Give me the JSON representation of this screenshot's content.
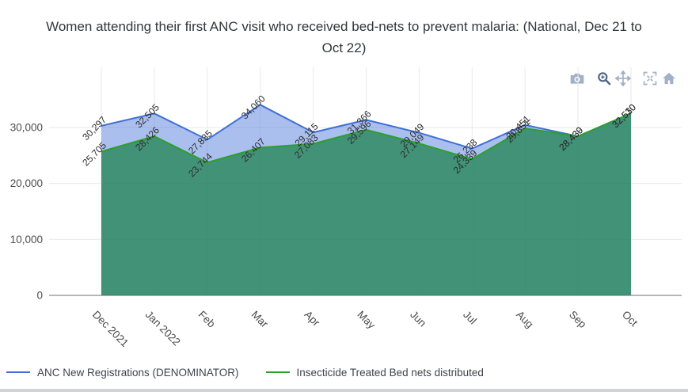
{
  "title": {
    "line1": "Women attending their first ANC visit who received bed-nets to prevent malaria: (National, Dec 21 to",
    "line2": "Oct 22)"
  },
  "modebar": {
    "icons": [
      "download-plot-camera",
      "zoom",
      "pan",
      "autoscale",
      "reset-axes-home"
    ],
    "icon_color": "#a2b1c6",
    "active_icon_color": "#506784"
  },
  "chart_data": {
    "type": "area",
    "title": "Women attending their first ANC visit who received bed-nets to prevent malaria: (National, Dec 21 to Oct 22)",
    "categories": [
      "Dec 2021",
      "Jan 2022",
      "Feb",
      "Mar",
      "Apr",
      "May",
      "Jun",
      "Jul",
      "Aug",
      "Sep",
      "Oct"
    ],
    "series": [
      {
        "name": "ANC New Registrations (DENOMINATOR)",
        "line_color": "#3f6fd7",
        "fill_color": "rgba(67,114,217,0.45)",
        "values": [
          30297,
          32505,
          27835,
          34060,
          29115,
          31366,
          29049,
          26238,
          30451,
          28430,
          32510
        ]
      },
      {
        "name": "Insecticide Treated Bed nets distributed",
        "line_color": "#2ca02c",
        "fill_color": "rgba(40,135,90,0.8)",
        "values": [
          25705,
          28426,
          23744,
          26407,
          27083,
          29596,
          27149,
          24339,
          29851,
          28439,
          32530
        ]
      }
    ],
    "yticks": [
      0,
      10000,
      20000,
      30000
    ],
    "ytick_labels": [
      "0",
      "10,000",
      "20,000",
      "30,000"
    ],
    "ylim": [
      0,
      35500
    ],
    "grid": true,
    "point_labels": true,
    "point_label_angle": -45,
    "xtick_angle": 45,
    "legend_position": "bottom-left"
  },
  "legend": {
    "items": [
      {
        "label": "ANC New Registrations (DENOMINATOR)",
        "color": "#3f6fd7"
      },
      {
        "label": "Insecticide Treated Bed nets distributed",
        "color": "#2ca02c"
      }
    ]
  }
}
